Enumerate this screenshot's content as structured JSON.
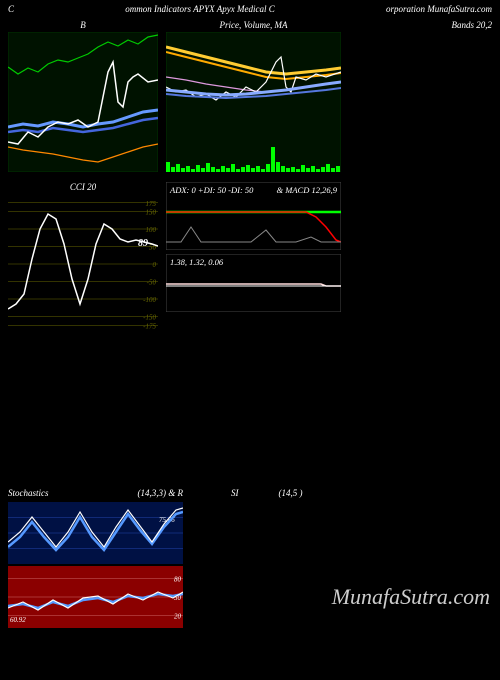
{
  "header": {
    "left": "C",
    "center": "ommon  Indicators APYX  Apyx Medical C",
    "right": "orporation  MunafaSutra.com"
  },
  "watermark": "MunafaSutra.com",
  "charts": {
    "topLeft": {
      "title": "B",
      "width": 150,
      "height": 140,
      "background": "#001200",
      "border": "#003300",
      "series": [
        {
          "color": "#00cc00",
          "width": 1.2,
          "points": [
            0,
            35,
            10,
            42,
            20,
            36,
            30,
            40,
            40,
            32,
            50,
            28,
            60,
            30,
            70,
            26,
            80,
            22,
            90,
            15,
            100,
            10,
            110,
            14,
            120,
            8,
            130,
            12,
            140,
            5,
            150,
            3
          ]
        },
        {
          "color": "#6699ff",
          "width": 3,
          "points": [
            0,
            95,
            15,
            92,
            30,
            94,
            45,
            90,
            60,
            92,
            75,
            95,
            90,
            92,
            105,
            90,
            120,
            85,
            135,
            80,
            150,
            78
          ]
        },
        {
          "color": "#4466dd",
          "width": 2.5,
          "points": [
            0,
            100,
            15,
            98,
            30,
            100,
            45,
            96,
            60,
            98,
            75,
            100,
            90,
            98,
            105,
            96,
            120,
            92,
            135,
            88,
            150,
            86
          ]
        },
        {
          "color": "#ffffff",
          "width": 1.5,
          "points": [
            0,
            110,
            10,
            112,
            20,
            100,
            30,
            105,
            40,
            95,
            50,
            90,
            60,
            92,
            70,
            88,
            80,
            95,
            90,
            90,
            100,
            40,
            105,
            30,
            110,
            70,
            115,
            75,
            120,
            50,
            125,
            45,
            130,
            42,
            140,
            50,
            150,
            48
          ]
        },
        {
          "color": "#ff8800",
          "width": 1.2,
          "points": [
            0,
            115,
            15,
            118,
            30,
            120,
            45,
            122,
            60,
            125,
            75,
            128,
            90,
            130,
            105,
            125,
            120,
            120,
            135,
            115,
            150,
            112
          ]
        }
      ]
    },
    "topCenter": {
      "title": "Price, Volume, MA",
      "width": 175,
      "height": 140,
      "background": "#001200",
      "border": "#003300",
      "volume_bars": [
        10,
        5,
        8,
        4,
        6,
        3,
        7,
        4,
        9,
        5,
        3,
        6,
        4,
        8,
        3,
        5,
        7,
        4,
        6,
        3,
        8,
        25,
        10,
        6,
        4,
        5,
        3,
        7,
        4,
        6,
        3,
        5,
        8,
        4,
        6
      ],
      "volume_color": "#00ff00",
      "series": [
        {
          "color": "#ffcc33",
          "width": 3,
          "points": [
            0,
            15,
            20,
            20,
            40,
            25,
            60,
            30,
            80,
            35,
            100,
            40,
            120,
            42,
            140,
            40,
            160,
            38,
            175,
            36
          ]
        },
        {
          "color": "#ffaa00",
          "width": 2,
          "points": [
            0,
            20,
            20,
            25,
            40,
            30,
            60,
            35,
            80,
            40,
            100,
            45,
            120,
            47,
            140,
            45,
            160,
            43,
            175,
            41
          ]
        },
        {
          "color": "#dd99dd",
          "width": 1.2,
          "points": [
            0,
            45,
            20,
            48,
            40,
            52,
            60,
            55,
            80,
            58,
            100,
            60,
            120,
            58,
            140,
            55,
            160,
            52,
            175,
            50
          ]
        },
        {
          "color": "#ffffff",
          "width": 1.2,
          "points": [
            0,
            55,
            10,
            60,
            20,
            58,
            30,
            65,
            40,
            62,
            50,
            68,
            60,
            60,
            70,
            65,
            80,
            55,
            90,
            60,
            100,
            50,
            110,
            30,
            115,
            25,
            120,
            55,
            125,
            60,
            130,
            45,
            140,
            48,
            150,
            42,
            160,
            45,
            175,
            40
          ]
        },
        {
          "color": "#88aaff",
          "width": 3,
          "points": [
            0,
            58,
            20,
            60,
            40,
            62,
            60,
            63,
            80,
            62,
            100,
            60,
            120,
            58,
            140,
            55,
            160,
            52,
            175,
            50
          ]
        },
        {
          "color": "#5577dd",
          "width": 2,
          "points": [
            0,
            62,
            20,
            64,
            40,
            65,
            60,
            66,
            80,
            65,
            100,
            64,
            120,
            62,
            140,
            60,
            160,
            58,
            175,
            56
          ]
        }
      ]
    },
    "topRight": {
      "title": "Bands 20,2",
      "width": 140,
      "height": 0
    },
    "cci": {
      "title": "CCI 20",
      "width": 150,
      "height": 140,
      "background": "#000000",
      "gridColor": "#666600",
      "gridLines": [
        175,
        150,
        100,
        50,
        0,
        -50,
        -100,
        -150,
        -175
      ],
      "valueLabel": "89",
      "valueLabelPos": [
        130,
        52
      ],
      "series": [
        {
          "color": "#ffffff",
          "width": 1.5,
          "points": [
            0,
            115,
            8,
            110,
            16,
            100,
            24,
            65,
            32,
            35,
            40,
            20,
            48,
            25,
            56,
            50,
            64,
            85,
            72,
            110,
            80,
            85,
            88,
            50,
            96,
            30,
            104,
            35,
            112,
            45,
            120,
            48,
            128,
            46,
            136,
            48,
            144,
            50,
            150,
            52
          ]
        }
      ]
    },
    "adx": {
      "title": "ADX: 0   +DI: 50   -DI: 50",
      "width": 175,
      "height": 68,
      "background": "#000000",
      "border": "#444444",
      "series": [
        {
          "color": "#00ff00",
          "width": 2.5,
          "points": [
            0,
            30,
            20,
            30,
            40,
            30,
            60,
            30,
            80,
            30,
            100,
            30,
            120,
            30,
            140,
            30,
            160,
            30,
            175,
            30
          ]
        },
        {
          "color": "#ff0000",
          "width": 1.5,
          "points": [
            0,
            30,
            140,
            30,
            150,
            35,
            160,
            45,
            170,
            58,
            175,
            60
          ]
        },
        {
          "color": "#888888",
          "width": 1,
          "points": [
            0,
            60,
            15,
            60,
            25,
            45,
            35,
            60,
            50,
            60,
            70,
            60,
            85,
            60,
            100,
            48,
            110,
            60,
            130,
            60,
            145,
            55,
            155,
            60,
            175,
            60
          ]
        }
      ]
    },
    "macd": {
      "title": "1.38,  1.32,  0.06",
      "width": 175,
      "height": 58,
      "background": "#000000",
      "border": "#444444",
      "series": [
        {
          "color": "#ffdddd",
          "width": 1.5,
          "points": [
            0,
            30,
            20,
            30,
            40,
            30,
            60,
            30,
            80,
            30,
            100,
            30,
            120,
            30,
            140,
            30,
            155,
            30,
            160,
            32,
            175,
            32
          ]
        },
        {
          "color": "#ffffff",
          "width": 1,
          "points": [
            0,
            32,
            175,
            32
          ]
        }
      ]
    },
    "stoch": {
      "title": "Stochastics",
      "titleRight": "(14,3,3) & R",
      "width": 175,
      "height": 62,
      "background": "#001144",
      "gridColor": "#2244aa",
      "valueLabel": "75.86",
      "series": [
        {
          "color": "#5599ff",
          "width": 2.5,
          "points": [
            0,
            45,
            12,
            35,
            24,
            20,
            36,
            35,
            48,
            48,
            60,
            35,
            72,
            15,
            84,
            35,
            96,
            48,
            108,
            30,
            120,
            12,
            132,
            28,
            144,
            42,
            156,
            25,
            168,
            12,
            175,
            10
          ]
        },
        {
          "color": "#ffffff",
          "width": 1.2,
          "points": [
            0,
            40,
            12,
            30,
            24,
            15,
            36,
            30,
            48,
            45,
            60,
            30,
            72,
            10,
            84,
            30,
            96,
            45,
            108,
            25,
            120,
            8,
            132,
            24,
            144,
            40,
            156,
            22,
            168,
            8,
            175,
            6
          ]
        }
      ]
    },
    "rsi": {
      "titleCenter": "SI",
      "titleRight": "(14,5                              )",
      "width": 175,
      "height": 62,
      "background": "#8b0000",
      "gridColor": "#cc6666",
      "gridLabels": [
        "80",
        "50",
        "20"
      ],
      "valueLabel": "60.92",
      "series": [
        {
          "color": "#5599ff",
          "width": 2.5,
          "points": [
            0,
            40,
            15,
            38,
            30,
            42,
            45,
            36,
            60,
            40,
            75,
            34,
            90,
            32,
            105,
            36,
            120,
            30,
            135,
            32,
            150,
            28,
            165,
            30,
            175,
            28
          ]
        },
        {
          "color": "#ffffff",
          "width": 1.2,
          "points": [
            0,
            42,
            15,
            36,
            30,
            44,
            45,
            34,
            60,
            42,
            75,
            32,
            90,
            30,
            105,
            38,
            120,
            28,
            135,
            34,
            150,
            26,
            165,
            32,
            175,
            26
          ]
        }
      ]
    }
  }
}
